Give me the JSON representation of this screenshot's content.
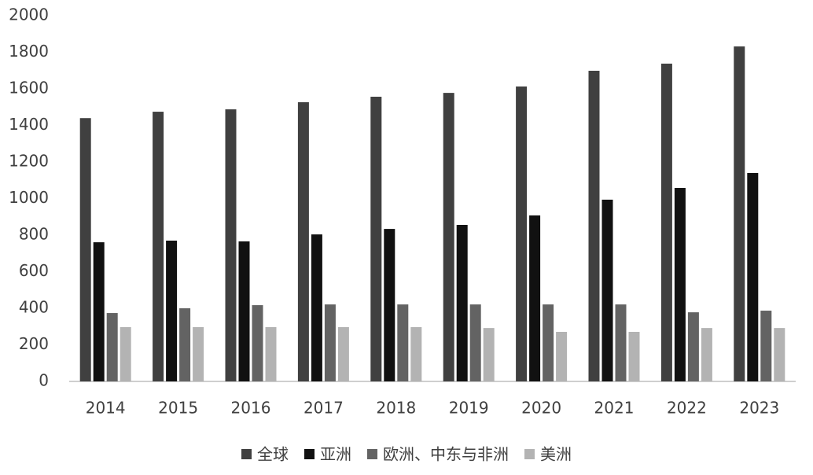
{
  "chart_data": {
    "type": "bar",
    "categories": [
      "2014",
      "2015",
      "2016",
      "2017",
      "2018",
      "2019",
      "2020",
      "2021",
      "2022",
      "2023"
    ],
    "series": [
      {
        "name": "全球",
        "color": "#404040",
        "values": [
          1440,
          1475,
          1488,
          1527,
          1557,
          1578,
          1613,
          1699,
          1738,
          1832
        ]
      },
      {
        "name": "亚洲",
        "color": "#111111",
        "values": [
          761,
          770,
          766,
          804,
          834,
          856,
          908,
          994,
          1058,
          1140
        ]
      },
      {
        "name": "欧洲、中东与非洲",
        "color": "#636363",
        "values": [
          374,
          400,
          417,
          421,
          421,
          421,
          421,
          421,
          378,
          387
        ]
      },
      {
        "name": "美洲",
        "color": "#b3b3b3",
        "values": [
          297,
          297,
          297,
          297,
          297,
          292,
          271,
          271,
          292,
          292
        ]
      }
    ],
    "ylim": [
      0,
      2000
    ],
    "yticks": [
      0,
      200,
      400,
      600,
      800,
      1000,
      1200,
      1400,
      1600,
      1800,
      2000
    ],
    "grid": false,
    "legend": "bottom"
  }
}
